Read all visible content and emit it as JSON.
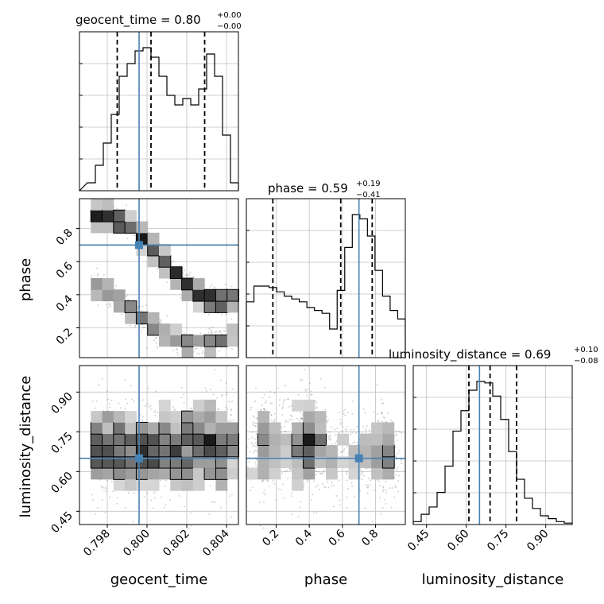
{
  "chart_data": {
    "type": "corner",
    "parameters": [
      "geocent_time",
      "phase",
      "luminosity_distance"
    ],
    "truths": {
      "geocent_time": 0.7996,
      "phase": 0.7,
      "luminosity_distance": 0.65
    },
    "colors": {
      "truth": "#4682b4",
      "hist": "#000000",
      "grid": "#c0c0c0",
      "samples": "#808080"
    },
    "titles": [
      {
        "param": "geocent_time",
        "text": "geocent_time = 0.80",
        "plus": "+0.00",
        "minus": "−0.00"
      },
      {
        "param": "phase",
        "text": "phase = 0.59",
        "plus": "+0.19",
        "minus": "−0.41"
      },
      {
        "param": "luminosity_distance",
        "text": "luminosity_distance = 0.69",
        "plus": "+0.10",
        "minus": "−0.08"
      }
    ],
    "axes": {
      "geocent_time": {
        "range": [
          0.7966,
          0.8046
        ],
        "ticks": [
          0.798,
          0.8,
          0.802,
          0.804
        ],
        "tick_labels": [
          "0.798",
          "0.800",
          "0.802",
          "0.804"
        ],
        "label": "geocent_time"
      },
      "phase": {
        "range": [
          0.02,
          0.98
        ],
        "ticks": [
          0.2,
          0.4,
          0.6,
          0.8
        ],
        "tick_labels": [
          "0.2",
          "0.4",
          "0.6",
          "0.8"
        ],
        "label": "phase"
      },
      "luminosity_distance": {
        "range": [
          0.4,
          1.0
        ],
        "ticks": [
          0.45,
          0.6,
          0.75,
          0.9
        ],
        "tick_labels": [
          "0.45",
          "0.60",
          "0.75",
          "0.90"
        ],
        "label": "luminosity_distance"
      }
    },
    "quantiles": {
      "geocent_time": [
        0.7985,
        0.8002,
        0.8029
      ],
      "phase": [
        0.18,
        0.59,
        0.78
      ],
      "luminosity_distance": [
        0.61,
        0.69,
        0.79
      ]
    },
    "histograms": {
      "geocent_time": {
        "start": 0.797,
        "step": 0.0004,
        "counts": [
          0.05,
          0.16,
          0.3,
          0.48,
          0.72,
          0.8,
          0.88,
          0.9,
          0.84,
          0.72,
          0.6,
          0.54,
          0.58,
          0.54,
          0.64,
          0.86,
          0.72,
          0.35,
          0.05
        ]
      },
      "phase": {
        "start": 0.02,
        "step": 0.0457,
        "counts": [
          0.39,
          0.5,
          0.5,
          0.49,
          0.46,
          0.43,
          0.41,
          0.39,
          0.35,
          0.33,
          0.31,
          0.2,
          0.47,
          0.77,
          1.0,
          0.97,
          0.85,
          0.61,
          0.43,
          0.33,
          0.27
        ]
      },
      "luminosity_distance": {
        "start": 0.4,
        "step": 0.03,
        "counts": [
          0.02,
          0.07,
          0.12,
          0.22,
          0.4,
          0.64,
          0.78,
          0.92,
          0.98,
          0.97,
          0.88,
          0.72,
          0.5,
          0.31,
          0.18,
          0.11,
          0.06,
          0.04,
          0.02,
          0.01
        ]
      }
    }
  }
}
